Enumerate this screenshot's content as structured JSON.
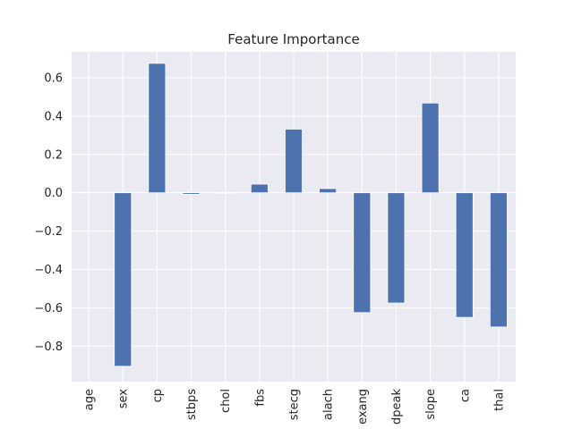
{
  "chart_data": {
    "type": "bar",
    "title": "Feature Importance",
    "xlabel": "",
    "ylabel": "",
    "categories": [
      "age",
      "sex",
      "cp",
      "stbps",
      "chol",
      "fbs",
      "stecg",
      "alach",
      "exang",
      "dpeak",
      "slope",
      "ca",
      "thal"
    ],
    "values": [
      0.003,
      -0.905,
      0.675,
      -0.008,
      0.0,
      0.045,
      0.332,
      0.022,
      -0.625,
      -0.575,
      0.468,
      -0.65,
      -0.7
    ],
    "ylim": [
      -0.985,
      0.735
    ],
    "yticks": [
      0.6,
      0.4,
      0.2,
      0.0,
      -0.2,
      -0.4,
      -0.6,
      -0.8
    ],
    "ytick_labels": [
      "0.6",
      "0.4",
      "0.2",
      "0.0",
      "−0.2",
      "−0.4",
      "−0.6",
      "−0.8"
    ],
    "grid": true,
    "colors": {
      "bar": "#4c72b0",
      "axes_bg": "#eaeaf2",
      "grid": "#ffffff"
    }
  }
}
